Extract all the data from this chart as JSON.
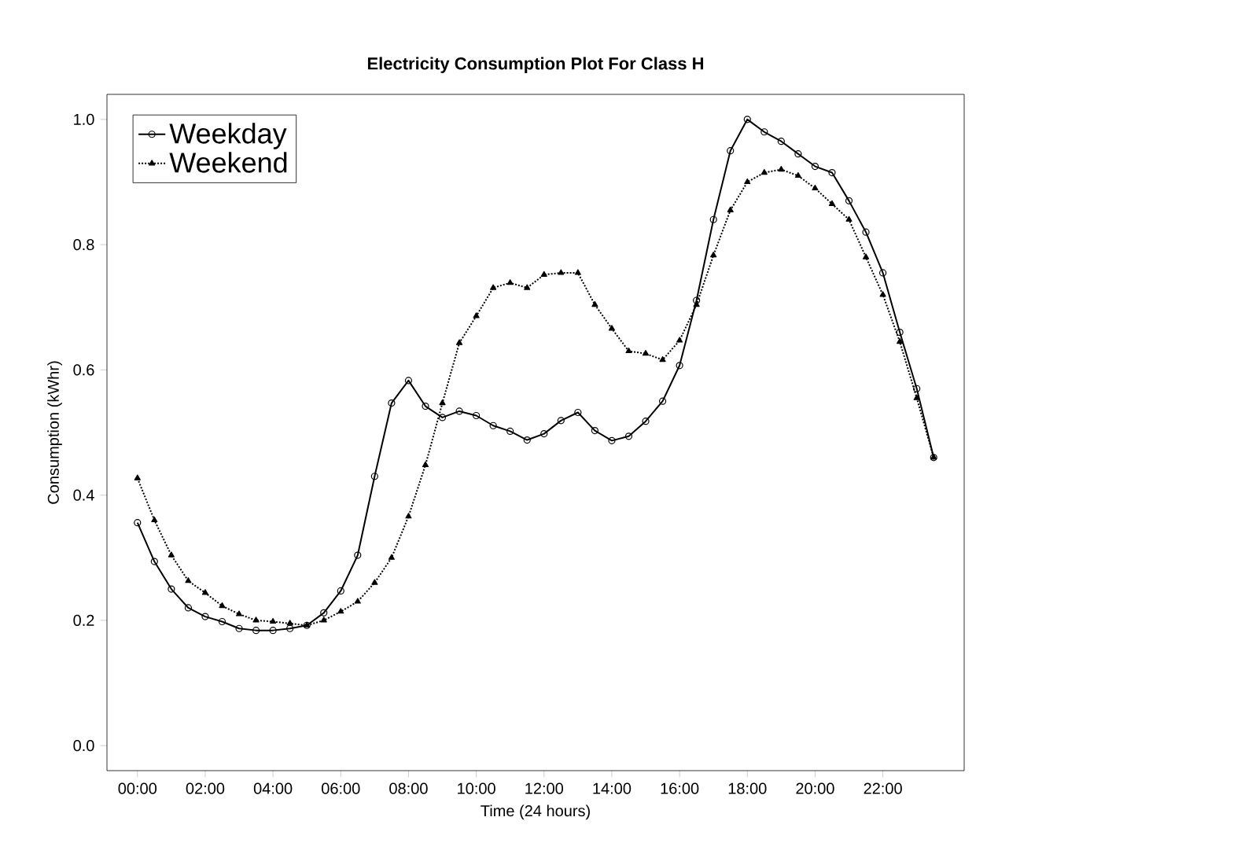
{
  "chart_data": {
    "type": "line",
    "title": "Electricity Consumption Plot For Class H",
    "xlabel": "Time (24 hours)",
    "ylabel": "Consumption (kWhr)",
    "x": [
      0,
      0.5,
      1,
      1.5,
      2,
      2.5,
      3,
      3.5,
      4,
      4.5,
      5,
      5.5,
      6,
      6.5,
      7,
      7.5,
      8,
      8.5,
      9,
      9.5,
      10,
      10.5,
      11,
      11.5,
      12,
      12.5,
      13,
      13.5,
      14,
      14.5,
      15,
      15.5,
      16,
      16.5,
      17,
      17.5,
      18,
      18.5,
      19,
      19.5,
      20,
      20.5,
      21,
      21.5,
      22,
      22.5,
      23,
      23.5
    ],
    "series": [
      {
        "name": "Weekday",
        "color": "#000000",
        "marker": "circle",
        "line_style": "solid",
        "values": [
          0.356,
          0.294,
          0.25,
          0.22,
          0.206,
          0.198,
          0.187,
          0.184,
          0.184,
          0.187,
          0.192,
          0.212,
          0.247,
          0.304,
          0.43,
          0.547,
          0.583,
          0.542,
          0.524,
          0.534,
          0.527,
          0.511,
          0.502,
          0.488,
          0.498,
          0.519,
          0.532,
          0.503,
          0.487,
          0.494,
          0.518,
          0.55,
          0.607,
          0.711,
          0.84,
          0.95,
          1.0,
          0.98,
          0.965,
          0.945,
          0.925,
          0.915,
          0.87,
          0.82,
          0.755,
          0.66,
          0.57,
          0.46
        ]
      },
      {
        "name": "Weekend",
        "color": "#000000",
        "marker": "triangle",
        "line_style": "dotted",
        "values": [
          0.427,
          0.36,
          0.304,
          0.263,
          0.244,
          0.223,
          0.21,
          0.2,
          0.198,
          0.195,
          0.192,
          0.2,
          0.214,
          0.23,
          0.26,
          0.3,
          0.366,
          0.448,
          0.547,
          0.643,
          0.686,
          0.731,
          0.739,
          0.731,
          0.752,
          0.755,
          0.755,
          0.704,
          0.666,
          0.63,
          0.626,
          0.616,
          0.647,
          0.704,
          0.783,
          0.855,
          0.9,
          0.915,
          0.92,
          0.91,
          0.89,
          0.865,
          0.84,
          0.78,
          0.72,
          0.645,
          0.555,
          0.46
        ]
      }
    ],
    "xlim": [
      -0.9,
      24.4
    ],
    "ylim": [
      -0.04,
      1.04
    ],
    "xticks": [
      {
        "value": 0,
        "label": "00:00"
      },
      {
        "value": 2,
        "label": "02:00"
      },
      {
        "value": 4,
        "label": "04:00"
      },
      {
        "value": 6,
        "label": "06:00"
      },
      {
        "value": 8,
        "label": "08:00"
      },
      {
        "value": 10,
        "label": "10:00"
      },
      {
        "value": 12,
        "label": "12:00"
      },
      {
        "value": 14,
        "label": "14:00"
      },
      {
        "value": 16,
        "label": "16:00"
      },
      {
        "value": 18,
        "label": "18:00"
      },
      {
        "value": 20,
        "label": "20:00"
      },
      {
        "value": 22,
        "label": "22:00"
      }
    ],
    "yticks": [
      {
        "value": 0,
        "label": "0.0"
      },
      {
        "value": 0.2,
        "label": "0.2"
      },
      {
        "value": 0.4,
        "label": "0.4"
      },
      {
        "value": 0.6,
        "label": "0.6"
      },
      {
        "value": 0.8,
        "label": "0.8"
      },
      {
        "value": 1,
        "label": "1.0"
      }
    ],
    "grid": false,
    "legend": "top left"
  }
}
